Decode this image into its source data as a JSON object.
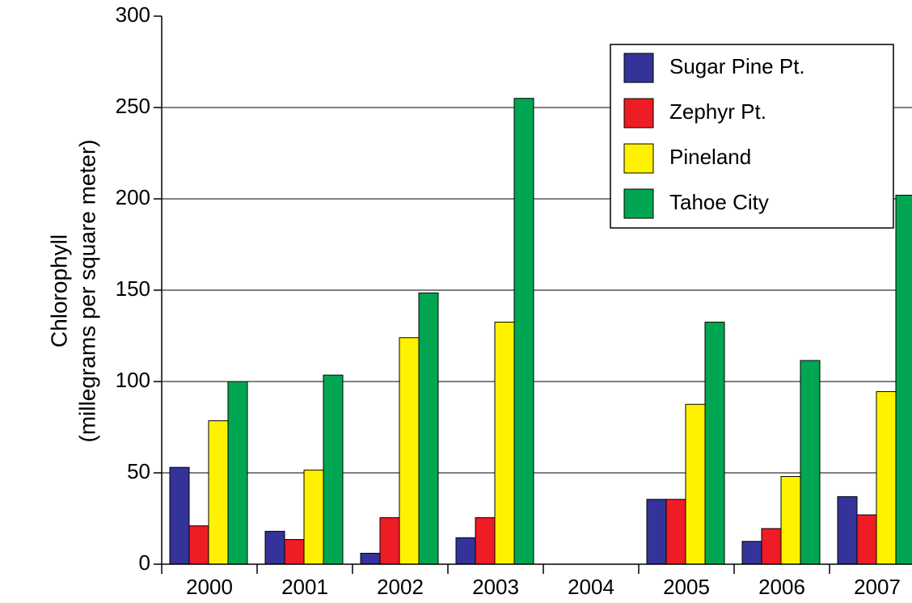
{
  "chart_data": {
    "type": "bar",
    "y_label": [
      "Chlorophyll",
      "(millegrams per square meter)"
    ],
    "categories": [
      "2000",
      "2001",
      "2002",
      "2003",
      "2004",
      "2005",
      "2006",
      "2007"
    ],
    "series": [
      {
        "name": "Sugar Pine Pt.",
        "color": "#333399",
        "values": [
          53,
          18,
          6,
          14.5,
          null,
          35.5,
          12.5,
          37
        ]
      },
      {
        "name": "Zephyr Pt.",
        "color": "#ee1c25",
        "values": [
          21,
          13.5,
          25.5,
          25.5,
          null,
          35.5,
          19.5,
          27
        ]
      },
      {
        "name": "Pineland",
        "color": "#fff200",
        "values": [
          78.5,
          51.5,
          124,
          132.5,
          null,
          87.5,
          48,
          94.5
        ]
      },
      {
        "name": "Tahoe City",
        "color": "#00a651",
        "values": [
          100,
          103.5,
          148.5,
          255,
          null,
          132.5,
          111.5,
          202
        ]
      }
    ],
    "ylim": [
      0,
      300
    ],
    "yticks": [
      0,
      50,
      100,
      150,
      200,
      250,
      300
    ],
    "grid": true,
    "legend": "top-right"
  }
}
